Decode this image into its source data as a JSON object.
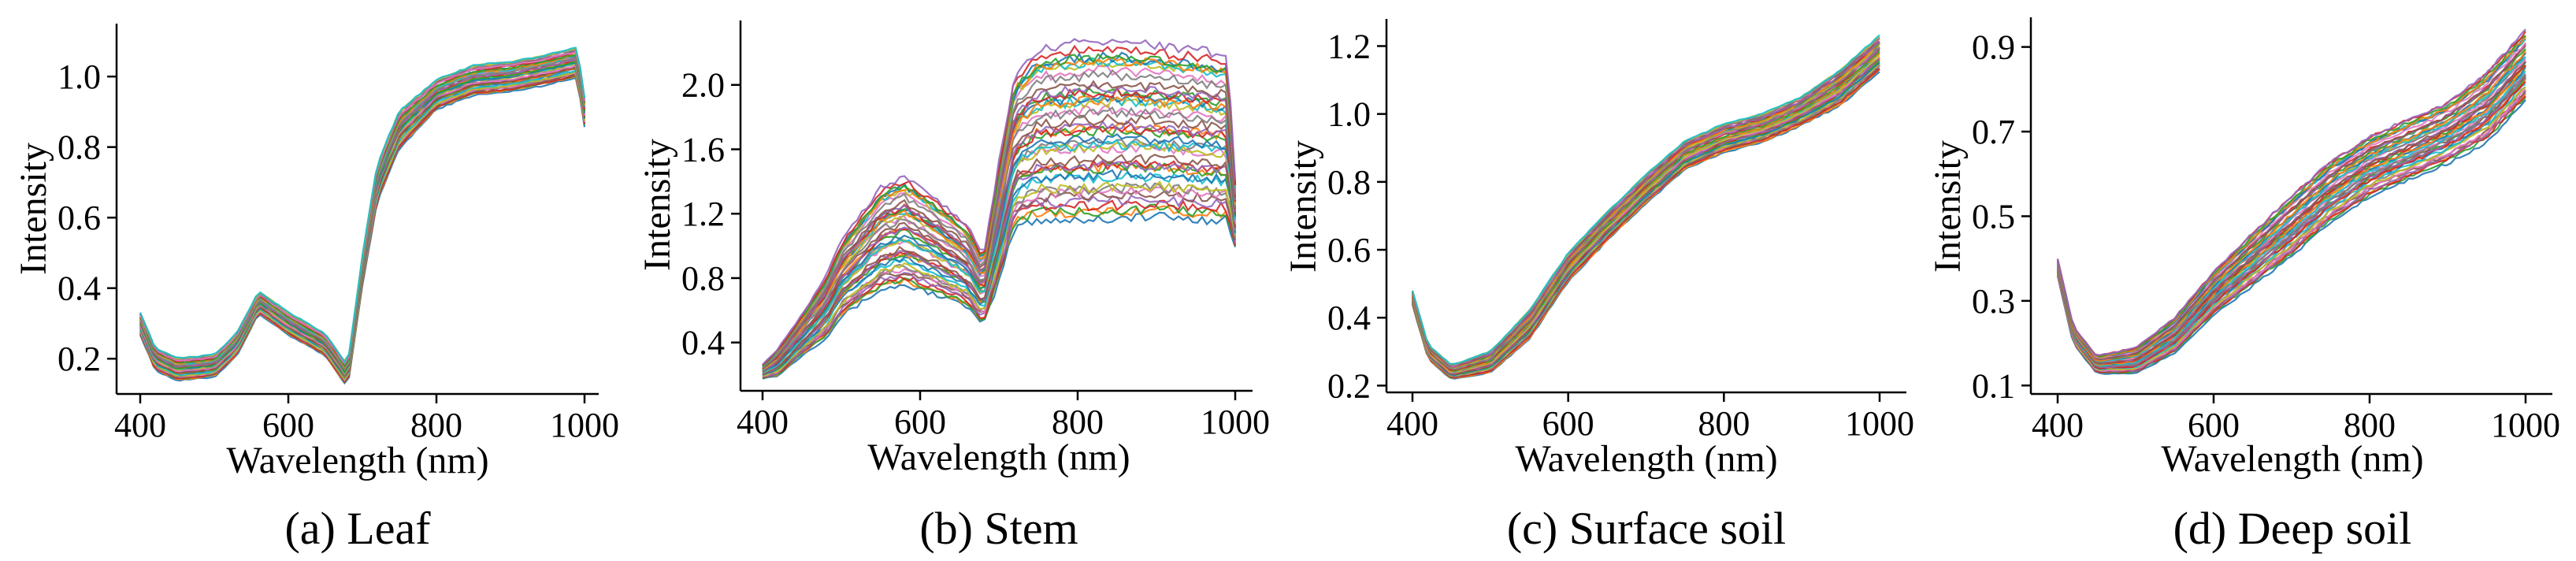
{
  "figure": {
    "palette": [
      "#1f77b4",
      "#ff7f0e",
      "#2ca02c",
      "#d62728",
      "#9467bd",
      "#8c564b",
      "#e377c2",
      "#7f7f7f",
      "#bcbd22",
      "#17becf"
    ]
  },
  "chart_data": [
    {
      "type": "line",
      "caption": "(a) Leaf",
      "xlabel": "Wavelength (nm)",
      "ylabel": "Intensity",
      "xlim": [
        400,
        1000
      ],
      "ylim": [
        0.1,
        1.15
      ],
      "xticks": [
        400,
        600,
        800,
        1000
      ],
      "xtick_labels": [
        "400",
        "600",
        "800",
        "1000"
      ],
      "yticks": [
        0.2,
        0.4,
        0.6,
        0.8,
        1.0
      ],
      "ytick_labels": [
        "0.2",
        "0.4",
        "0.6",
        "0.8",
        "1.0"
      ],
      "series_count": 40,
      "x": [
        400,
        420,
        450,
        500,
        530,
        560,
        600,
        650,
        680,
        700,
        720,
        750,
        800,
        850,
        900,
        950,
        990,
        1000
      ],
      "representative": [
        0.3,
        0.2,
        0.17,
        0.18,
        0.24,
        0.36,
        0.3,
        0.24,
        0.15,
        0.45,
        0.7,
        0.85,
        0.95,
        0.99,
        1.0,
        1.02,
        1.04,
        0.9
      ],
      "spread": [
        0.03,
        0.03,
        0.03,
        0.03,
        0.03,
        0.03,
        0.03,
        0.03,
        0.03,
        0.04,
        0.05,
        0.05,
        0.04,
        0.04,
        0.04,
        0.04,
        0.04,
        0.04
      ]
    },
    {
      "type": "line",
      "caption": "(b) Stem",
      "xlabel": "Wavelength (nm)",
      "ylabel": "Intensity",
      "xlim": [
        400,
        1000
      ],
      "ylim": [
        0.1,
        2.4
      ],
      "xticks": [
        400,
        600,
        800,
        1000
      ],
      "xtick_labels": [
        "400",
        "600",
        "800",
        "1000"
      ],
      "yticks": [
        0.4,
        0.8,
        1.2,
        1.6,
        2.0
      ],
      "ytick_labels": [
        "0.4",
        "0.8",
        "1.2",
        "1.6",
        "2.0"
      ],
      "series_count": 45,
      "x": [
        400,
        420,
        450,
        480,
        500,
        550,
        580,
        620,
        660,
        680,
        700,
        720,
        750,
        800,
        850,
        900,
        950,
        990,
        1000
      ],
      "representative": [
        0.22,
        0.28,
        0.45,
        0.62,
        0.8,
        1.05,
        1.1,
        1.0,
        0.88,
        0.72,
        1.15,
        1.6,
        1.7,
        1.72,
        1.73,
        1.72,
        1.7,
        1.68,
        1.2
      ],
      "spread": [
        0.04,
        0.08,
        0.12,
        0.18,
        0.22,
        0.3,
        0.32,
        0.28,
        0.24,
        0.2,
        0.35,
        0.45,
        0.5,
        0.52,
        0.52,
        0.5,
        0.5,
        0.48,
        0.2
      ]
    },
    {
      "type": "line",
      "caption": "(c) Surface soil",
      "xlabel": "Wavelength (nm)",
      "ylabel": "Intensity",
      "xlim": [
        400,
        1000
      ],
      "ylim": [
        0.18,
        1.28
      ],
      "xticks": [
        400,
        600,
        800,
        1000
      ],
      "xtick_labels": [
        "400",
        "600",
        "800",
        "1000"
      ],
      "yticks": [
        0.2,
        0.4,
        0.6,
        0.8,
        1.0,
        1.2
      ],
      "ytick_labels": [
        "0.2",
        "0.4",
        "0.6",
        "0.8",
        "1.0",
        "1.2"
      ],
      "series_count": 40,
      "x": [
        400,
        420,
        450,
        500,
        550,
        600,
        650,
        700,
        750,
        800,
        850,
        900,
        950,
        1000
      ],
      "representative": [
        0.46,
        0.3,
        0.24,
        0.27,
        0.38,
        0.55,
        0.67,
        0.78,
        0.88,
        0.93,
        0.96,
        1.01,
        1.08,
        1.18
      ],
      "spread": [
        0.02,
        0.02,
        0.02,
        0.03,
        0.04,
        0.04,
        0.04,
        0.04,
        0.04,
        0.04,
        0.04,
        0.04,
        0.05,
        0.05
      ]
    },
    {
      "type": "line",
      "caption": "(d) Deep soil",
      "xlabel": "Wavelength (nm)",
      "ylabel": "Intensity",
      "xlim": [
        400,
        1000
      ],
      "ylim": [
        0.08,
        0.97
      ],
      "xticks": [
        400,
        600,
        800,
        1000
      ],
      "xtick_labels": [
        "400",
        "600",
        "800",
        "1000"
      ],
      "yticks": [
        0.1,
        0.3,
        0.5,
        0.7,
        0.9
      ],
      "ytick_labels": [
        "0.1",
        "0.3",
        "0.5",
        "0.7",
        "0.9"
      ],
      "series_count": 45,
      "x": [
        400,
        420,
        450,
        500,
        550,
        600,
        650,
        700,
        750,
        800,
        850,
        900,
        950,
        1000
      ],
      "representative": [
        0.38,
        0.22,
        0.15,
        0.16,
        0.22,
        0.32,
        0.4,
        0.48,
        0.56,
        0.62,
        0.66,
        0.7,
        0.76,
        0.86
      ],
      "spread": [
        0.02,
        0.02,
        0.02,
        0.03,
        0.04,
        0.05,
        0.06,
        0.07,
        0.07,
        0.07,
        0.07,
        0.07,
        0.08,
        0.08
      ]
    }
  ]
}
